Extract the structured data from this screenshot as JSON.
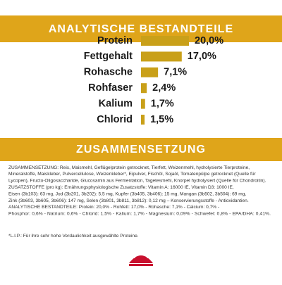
{
  "chart_data": {
    "type": "bar",
    "orientation": "horizontal",
    "title": "ANALYTISCHE BESTANDTEILE",
    "categories": [
      "Protein",
      "Fettgehalt",
      "Rohasche",
      "Rohfaser",
      "Kalium",
      "Chlorid"
    ],
    "values": [
      20.0,
      17.0,
      7.1,
      2.4,
      1.7,
      1.5
    ],
    "value_labels": [
      "20,0%",
      "17,0%",
      "7,1%",
      "2,4%",
      "1,7%",
      "1,5%"
    ],
    "color": "#c9a019"
  },
  "composition": {
    "title": "ZUSAMMENSETZUNG",
    "lines": [
      "ZUSAMMENSETZUNG: Reis, Maismehl, Geflügelprotein getrocknet, Tierfett, Weizenmehl, hydrolysierte Tierproteine,",
      "Mineralstoffe, Maiskleber, Pulvercellulose, Weizenkleber*, Eipulver, Fischöl, Sojaöl, Tomatenpülpe getrocknet (Quelle für",
      "Lycopen), Fructo-Oligosaccharide, Glucosamin aus Fermentation, Tagetesmehl, Knorpel hydrolysiert (Quelle für Chondroitin).",
      "ZUSATZSTOFFE (pro kg): Ernährungsphysiologische Zusatzstoffe: Vitamin A: 16000 IE, Vitamin D3: 1000 IE,",
      "Eisen (3b103): 63 mg, Jod (3b201, 3b202): 5,5 mg, Kupfer (3b405, 3b406): 15 mg, Mangan (3b502, 3b504): 69 mg,",
      "Zink (3b603, 3b605, 3b606): 147 mg, Selen (3b801, 3b811, 3b812): 0,12 mg – Konservierungsstoffe - Antioxidantien.",
      "ANALYTISCHE BESTANDTEILE: Protein: 20,0% - Rohfett: 17,0% - Rohasche: 7,1% - Calcium: 0,7% -",
      "Phosphor: 0,6% - Natrium: 0,6% - Chlorid: 1,5% - Kalium: 1,7% - Magnesium: 0,09% - Schwefel: 0,8% - EPA/DHA: 0,41%."
    ],
    "footnote": "*L.I.P.: Für ihre sehr hohe Verdaulichkeit ausgewählte Proteine."
  }
}
